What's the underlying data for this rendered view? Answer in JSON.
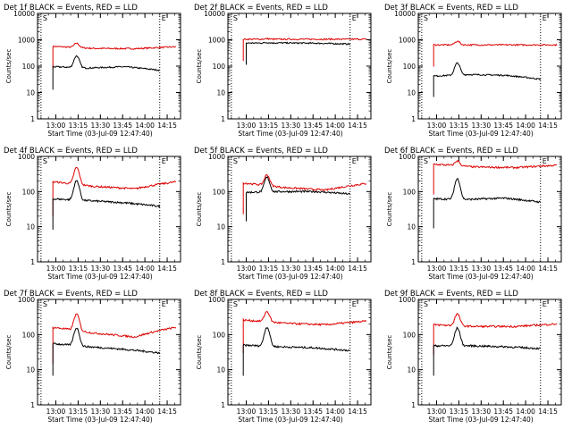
{
  "figure": {
    "colors": {
      "events": "#000000",
      "lld": "#dd0000",
      "axes": "#000000",
      "background": "#ffffff"
    }
  },
  "chart_data": [
    {
      "type": "line",
      "title": "Det 1f BLACK = Events, RED = LLD",
      "xlabel": "Start Time (03-Jul-09 12:47:40)",
      "ylabel": "Counts/sec",
      "x_ticks": [
        "13:00",
        "13:15",
        "13:30",
        "13:45",
        "14:00",
        "14:15"
      ],
      "y_ticks": [
        "1",
        "10",
        "100",
        "1000",
        "10000"
      ],
      "y_scale": "log",
      "ylim": [
        1,
        10000
      ],
      "markers": [
        "S",
        "E"
      ],
      "series": [
        {
          "name": "LLD",
          "color": "#dd0000",
          "start": "12:58",
          "end": "14:21",
          "base": 520,
          "peak": 750,
          "trend": [
            560,
            470,
            460,
            540
          ]
        },
        {
          "name": "Events",
          "color": "#000000",
          "start": "12:58",
          "end": "14:10",
          "base": 85,
          "peak": 240,
          "trend": [
            95,
            85,
            95,
            70
          ]
        }
      ]
    },
    {
      "type": "line",
      "title": "Det 2f BLACK = Events, RED = LLD",
      "xlabel": "Start Time (03-Jul-09 12:47:40)",
      "ylabel": "Counts/sec",
      "x_ticks": [
        "13:00",
        "13:15",
        "13:30",
        "13:45",
        "14:00",
        "14:15"
      ],
      "y_ticks": [
        "1",
        "10",
        "100",
        "1000",
        "10000"
      ],
      "y_scale": "log",
      "ylim": [
        1,
        10000
      ],
      "markers": [
        "S",
        "E"
      ],
      "series": [
        {
          "name": "LLD",
          "color": "#dd0000",
          "start": "12:58",
          "end": "14:21",
          "base": 1050,
          "peak": 1100,
          "trend": [
            1050,
            1050,
            1050,
            1050
          ]
        },
        {
          "name": "Events",
          "color": "#000000",
          "start": "13:00",
          "end": "14:10",
          "base": 750,
          "peak": 780,
          "trend": [
            750,
            760,
            740,
            690
          ]
        }
      ]
    },
    {
      "type": "line",
      "title": "Det 3f BLACK = Events, RED = LLD",
      "xlabel": "Start Time (03-Jul-09 12:47:40)",
      "ylabel": "Counts/sec",
      "x_ticks": [
        "13:00",
        "13:15",
        "13:30",
        "13:45",
        "14:00",
        "14:15"
      ],
      "y_ticks": [
        "1",
        "10",
        "100",
        "1000",
        "10000"
      ],
      "y_scale": "log",
      "ylim": [
        1,
        10000
      ],
      "markers": [
        "S",
        "E"
      ],
      "series": [
        {
          "name": "LLD",
          "color": "#dd0000",
          "start": "12:58",
          "end": "14:21",
          "base": 640,
          "peak": 880,
          "trend": [
            640,
            640,
            640,
            640
          ]
        },
        {
          "name": "Events",
          "color": "#000000",
          "start": "12:58",
          "end": "14:10",
          "base": 45,
          "peak": 130,
          "trend": [
            42,
            48,
            45,
            32
          ]
        }
      ]
    },
    {
      "type": "line",
      "title": "Det 4f BLACK = Events, RED = LLD",
      "xlabel": "Start Time (03-Jul-09 12:47:40)",
      "ylabel": "Counts/sec",
      "x_ticks": [
        "13:00",
        "13:15",
        "13:30",
        "13:45",
        "14:00",
        "14:15"
      ],
      "y_ticks": [
        "1",
        "10",
        "100",
        "1000"
      ],
      "y_scale": "log",
      "ylim": [
        1,
        1000
      ],
      "markers": [
        "S",
        "E"
      ],
      "series": [
        {
          "name": "LLD",
          "color": "#dd0000",
          "start": "12:58",
          "end": "14:21",
          "base": 130,
          "peak": 450,
          "trend": [
            190,
            140,
            120,
            190
          ]
        },
        {
          "name": "Events",
          "color": "#000000",
          "start": "12:58",
          "end": "14:10",
          "base": 55,
          "peak": 200,
          "trend": [
            62,
            55,
            48,
            38
          ]
        }
      ]
    },
    {
      "type": "line",
      "title": "Det 5f BLACK = Events, RED = LLD",
      "xlabel": "Start Time (03-Jul-09 12:47:40)",
      "ylabel": "Counts/sec",
      "x_ticks": [
        "13:00",
        "13:15",
        "13:30",
        "13:45",
        "14:00",
        "14:15"
      ],
      "y_ticks": [
        "1",
        "10",
        "100",
        "1000"
      ],
      "y_scale": "log",
      "ylim": [
        1,
        1000
      ],
      "markers": [
        "S",
        "E"
      ],
      "series": [
        {
          "name": "LLD",
          "color": "#dd0000",
          "start": "12:58",
          "end": "14:21",
          "base": 150,
          "peak": 300,
          "trend": [
            175,
            130,
            110,
            170
          ]
        },
        {
          "name": "Events",
          "color": "#000000",
          "start": "13:00",
          "end": "14:10",
          "base": 95,
          "peak": 250,
          "trend": [
            95,
            100,
            100,
            85
          ]
        }
      ]
    },
    {
      "type": "line",
      "title": "Det 6f BLACK = Events, RED = LLD",
      "xlabel": "Start Time (03-Jul-09 12:47:40)",
      "ylabel": "Counts/sec",
      "x_ticks": [
        "13:00",
        "13:15",
        "13:30",
        "13:45",
        "14:00",
        "14:15"
      ],
      "y_ticks": [
        "1",
        "10",
        "100",
        "1000"
      ],
      "y_scale": "log",
      "ylim": [
        1,
        1000
      ],
      "markers": [
        "S",
        "E"
      ],
      "series": [
        {
          "name": "LLD",
          "color": "#dd0000",
          "start": "12:58",
          "end": "14:21",
          "base": 550,
          "peak": 750,
          "trend": [
            600,
            500,
            480,
            560
          ]
        },
        {
          "name": "Events",
          "color": "#000000",
          "start": "12:58",
          "end": "14:10",
          "base": 60,
          "peak": 230,
          "trend": [
            62,
            60,
            65,
            50
          ]
        }
      ]
    },
    {
      "type": "line",
      "title": "Det 7f BLACK = Events, RED = LLD",
      "xlabel": "Start Time (03-Jul-09 12:47:40)",
      "ylabel": "Counts/sec",
      "x_ticks": [
        "13:00",
        "13:15",
        "13:30",
        "13:45",
        "14:00",
        "14:15"
      ],
      "y_ticks": [
        "1",
        "10",
        "100",
        "1000"
      ],
      "y_scale": "log",
      "ylim": [
        1,
        1000
      ],
      "markers": [
        "S",
        "E"
      ],
      "series": [
        {
          "name": "LLD",
          "color": "#dd0000",
          "start": "12:58",
          "end": "14:21",
          "base": 100,
          "peak": 350,
          "trend": [
            160,
            110,
            85,
            160
          ]
        },
        {
          "name": "Events",
          "color": "#000000",
          "start": "12:58",
          "end": "14:10",
          "base": 45,
          "peak": 150,
          "trend": [
            55,
            45,
            38,
            30
          ]
        }
      ]
    },
    {
      "type": "line",
      "title": "Det 8f BLACK = Events, RED = LLD",
      "xlabel": "Start Time (03-Jul-09 12:47:40)",
      "ylabel": "Counts/sec",
      "x_ticks": [
        "13:00",
        "13:15",
        "13:30",
        "13:45",
        "14:00",
        "14:15"
      ],
      "y_ticks": [
        "1",
        "10",
        "100",
        "1000"
      ],
      "y_scale": "log",
      "ylim": [
        1,
        1000
      ],
      "markers": [
        "S",
        "E"
      ],
      "series": [
        {
          "name": "LLD",
          "color": "#dd0000",
          "start": "12:58",
          "end": "14:21",
          "base": 200,
          "peak": 420,
          "trend": [
            260,
            210,
            190,
            240
          ]
        },
        {
          "name": "Events",
          "color": "#000000",
          "start": "12:58",
          "end": "14:10",
          "base": 45,
          "peak": 160,
          "trend": [
            50,
            45,
            42,
            35
          ]
        }
      ]
    },
    {
      "type": "line",
      "title": "Det 9f BLACK = Events, RED = LLD",
      "xlabel": "Start Time (03-Jul-09 12:47:40)",
      "ylabel": "Counts/sec",
      "x_ticks": [
        "13:00",
        "13:15",
        "13:30",
        "13:45",
        "14:00",
        "14:15"
      ],
      "y_ticks": [
        "1",
        "10",
        "100",
        "1000"
      ],
      "y_scale": "log",
      "ylim": [
        1,
        1000
      ],
      "markers": [
        "S",
        "E"
      ],
      "series": [
        {
          "name": "LLD",
          "color": "#dd0000",
          "start": "12:58",
          "end": "14:21",
          "base": 175,
          "peak": 380,
          "trend": [
            190,
            170,
            170,
            200
          ]
        },
        {
          "name": "Events",
          "color": "#000000",
          "start": "12:58",
          "end": "14:10",
          "base": 45,
          "peak": 150,
          "trend": [
            48,
            48,
            45,
            40
          ]
        }
      ]
    }
  ]
}
